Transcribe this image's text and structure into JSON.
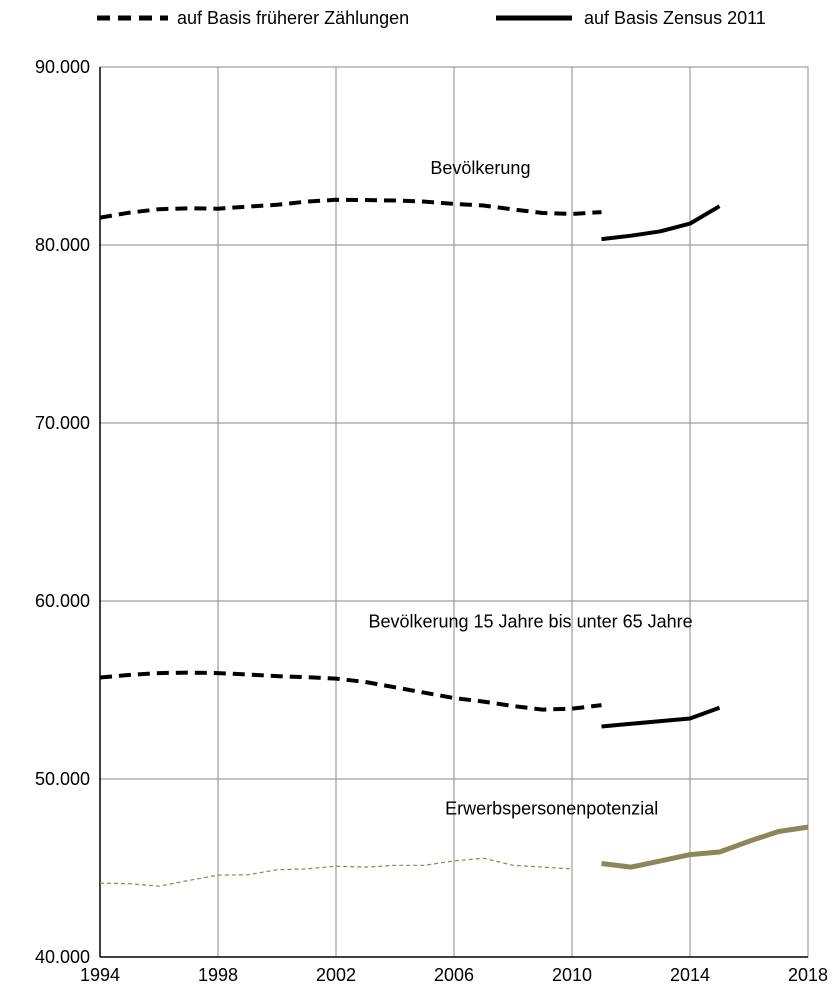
{
  "chart_data": {
    "type": "line",
    "title": "",
    "xlabel": "",
    "ylabel": "",
    "xlim": [
      1994,
      2018
    ],
    "ylim": [
      40000,
      90000
    ],
    "x_ticks": [
      "1994",
      "1998",
      "2002",
      "2006",
      "2010",
      "2014",
      "2018"
    ],
    "y_ticks": [
      "40.000",
      "50.000",
      "60.000",
      "70.000",
      "80.000",
      "90.000"
    ],
    "grid": true,
    "legend": {
      "placement": "top",
      "entries": [
        {
          "label": "auf Basis früherer Zählungen",
          "style": "dashed"
        },
        {
          "label": "auf Basis Zensus 2011",
          "style": "solid"
        }
      ]
    },
    "annotations": [
      {
        "text": "Bevölkerung",
        "x": 2005.2,
        "y": 84000
      },
      {
        "text": "Bevölkerung 15 Jahre bis unter 65 Jahre",
        "x": 2003.1,
        "y": 58500
      },
      {
        "text": "Erwerbspersonenpotenzial",
        "x": 2005.7,
        "y": 48000
      }
    ],
    "series": [
      {
        "group": "Bevölkerung",
        "basis": "auf Basis früherer Zählungen",
        "style": "dashed",
        "color": "#000000",
        "x": [
          1994,
          1995,
          1996,
          1997,
          1998,
          1999,
          2000,
          2001,
          2002,
          2003,
          2004,
          2005,
          2006,
          2007,
          2008,
          2009,
          2010,
          2011
        ],
        "values": [
          81540,
          81820,
          82010,
          82060,
          82040,
          82160,
          82260,
          82440,
          82540,
          82530,
          82500,
          82440,
          82310,
          82220,
          82000,
          81800,
          81750,
          81850
        ]
      },
      {
        "group": "Bevölkerung",
        "basis": "auf Basis Zensus 2011",
        "style": "solid",
        "color": "#000000",
        "x": [
          2011,
          2012,
          2013,
          2014,
          2015
        ],
        "values": [
          80330,
          80520,
          80770,
          81200,
          82180
        ]
      },
      {
        "group": "Bevölkerung 15 Jahre bis unter 65 Jahre",
        "basis": "auf Basis früherer Zählungen",
        "style": "dashed",
        "color": "#000000",
        "x": [
          1994,
          1995,
          1996,
          1997,
          1998,
          1999,
          2000,
          2001,
          2002,
          2003,
          2004,
          2005,
          2006,
          2007,
          2008,
          2009,
          2010,
          2011
        ],
        "values": [
          55700,
          55850,
          55950,
          55980,
          55950,
          55870,
          55780,
          55720,
          55640,
          55450,
          55150,
          54850,
          54550,
          54350,
          54100,
          53900,
          53950,
          54150
        ]
      },
      {
        "group": "Bevölkerung 15 Jahre bis unter 65 Jahre",
        "basis": "auf Basis Zensus 2011",
        "style": "solid",
        "color": "#000000",
        "x": [
          2011,
          2012,
          2013,
          2014,
          2015
        ],
        "values": [
          52950,
          53100,
          53250,
          53400,
          54000
        ]
      },
      {
        "group": "Erwerbspersonenpotenzial",
        "basis": "auf Basis früherer Zählungen",
        "style": "dashed-thin",
        "color": "#8c865b",
        "x": [
          1994,
          1995,
          1996,
          1997,
          1998,
          1999,
          2000,
          2001,
          2002,
          2003,
          2004,
          2005,
          2006,
          2007,
          2008,
          2009,
          2010
        ],
        "values": [
          44150,
          44120,
          43980,
          44300,
          44600,
          44620,
          44900,
          44950,
          45100,
          45050,
          45150,
          45150,
          45400,
          45550,
          45150,
          45050,
          44950
        ]
      },
      {
        "group": "Erwerbspersonenpotenzial",
        "basis": "auf Basis Zensus 2011",
        "style": "solid-thick",
        "color": "#8c865b",
        "x": [
          2011,
          2012,
          2013,
          2014,
          2015,
          2016,
          2017,
          2018
        ],
        "values": [
          45250,
          45050,
          45400,
          45750,
          45900,
          46500,
          47050,
          47300
        ]
      }
    ]
  }
}
